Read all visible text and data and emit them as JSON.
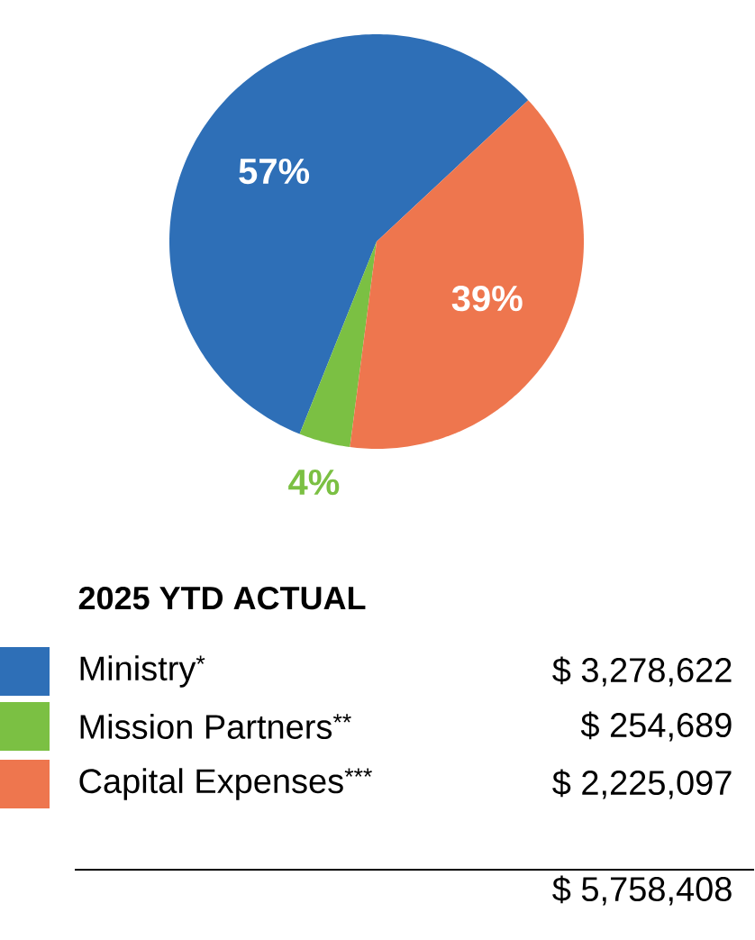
{
  "chart_data": {
    "type": "pie",
    "categories": [
      "Ministry$^{*}$",
      "Mission Partners$^{**}$",
      "Capital Expenses$^{***}$"
    ],
    "values": [
      57,
      4,
      39
    ],
    "value_labels": [
      "57%",
      "4%",
      "39%"
    ],
    "colors": [
      "#2e6fb7",
      "#7bc043",
      "#ee764e"
    ],
    "legend_title": "2025 YTD ACTUAL",
    "legend": "bottom",
    "annotations": [
      "$ 3,278,622",
      "$ 254,689",
      "$ 2,225,097",
      "$ 5,758,408"
    ]
  }
}
